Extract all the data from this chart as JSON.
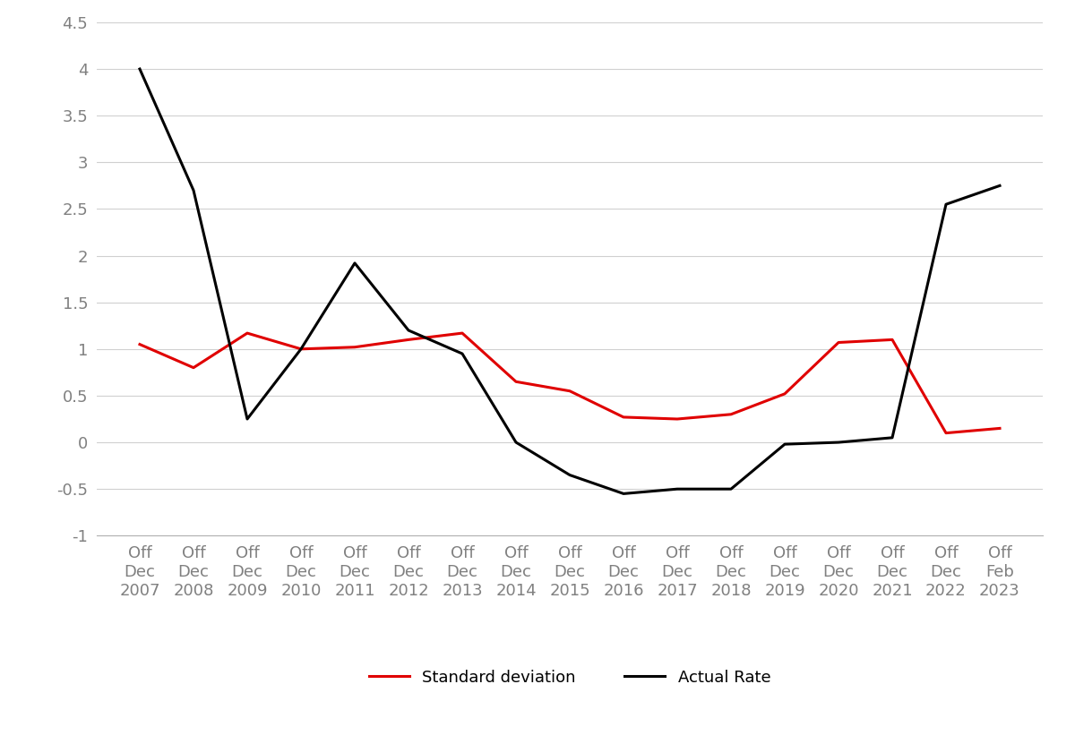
{
  "x_labels": [
    [
      "Off",
      "Dec",
      "2007"
    ],
    [
      "Off",
      "Dec",
      "2008"
    ],
    [
      "Off",
      "Dec",
      "2009"
    ],
    [
      "Off",
      "Dec",
      "2010"
    ],
    [
      "Off",
      "Dec",
      "2011"
    ],
    [
      "Off",
      "Dec",
      "2012"
    ],
    [
      "Off",
      "Dec",
      "2013"
    ],
    [
      "Off",
      "Dec",
      "2014"
    ],
    [
      "Off",
      "Dec",
      "2015"
    ],
    [
      "Off",
      "Dec",
      "2016"
    ],
    [
      "Off",
      "Dec",
      "2017"
    ],
    [
      "Off",
      "Dec",
      "2018"
    ],
    [
      "Off",
      "Dec",
      "2019"
    ],
    [
      "Off",
      "Dec",
      "2020"
    ],
    [
      "Off",
      "Dec",
      "2021"
    ],
    [
      "Off",
      "Dec",
      "2022"
    ],
    [
      "Off",
      "Feb",
      "2023"
    ]
  ],
  "std_dev": [
    1.05,
    0.8,
    1.17,
    1.0,
    1.02,
    1.1,
    1.17,
    0.65,
    0.55,
    0.27,
    0.25,
    0.3,
    0.52,
    1.07,
    1.1,
    0.1,
    0.15
  ],
  "actual_rate": [
    4.0,
    2.7,
    0.25,
    1.0,
    1.92,
    1.2,
    0.95,
    0.0,
    -0.35,
    -0.55,
    -0.5,
    -0.5,
    -0.02,
    0.0,
    0.05,
    2.55,
    2.75
  ],
  "std_dev_color": "#e00000",
  "actual_rate_color": "#000000",
  "std_dev_label": "Standard deviation",
  "actual_rate_label": "Actual Rate",
  "ylim": [
    -1.0,
    4.5
  ],
  "yticks": [
    -1.0,
    -0.5,
    0.0,
    0.5,
    1.0,
    1.5,
    2.0,
    2.5,
    3.0,
    3.5,
    4.0,
    4.5
  ],
  "line_width": 2.2,
  "grid_color": "#d0d0d0",
  "background_color": "#ffffff",
  "legend_fontsize": 13,
  "tick_fontsize": 13,
  "ytick_color": "#808080"
}
